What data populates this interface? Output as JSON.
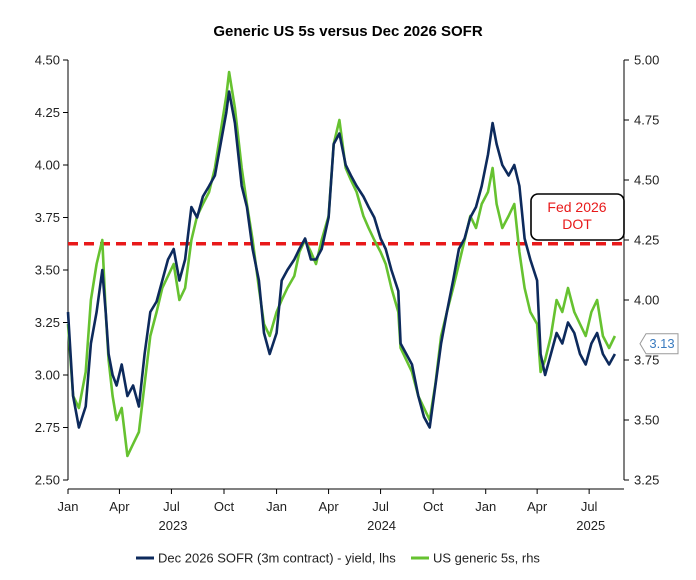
{
  "chart_data": {
    "type": "line",
    "title": "Generic US 5s versus Dec 2026 SOFR",
    "x_axis": {
      "range": [
        "2023-01-01",
        "2025-08-31"
      ],
      "ticks": [
        {
          "date": "2023-01-01",
          "label": "Jan",
          "year": "2023"
        },
        {
          "date": "2023-04-01",
          "label": "Apr"
        },
        {
          "date": "2023-07-01",
          "label": "Jul"
        },
        {
          "date": "2023-10-01",
          "label": "Oct"
        },
        {
          "date": "2024-01-01",
          "label": "Jan",
          "year": "2024"
        },
        {
          "date": "2024-04-01",
          "label": "Apr"
        },
        {
          "date": "2024-07-01",
          "label": "Jul"
        },
        {
          "date": "2024-10-01",
          "label": "Oct"
        },
        {
          "date": "2025-01-01",
          "label": "Jan",
          "year": "2025"
        },
        {
          "date": "2025-04-01",
          "label": "Apr"
        },
        {
          "date": "2025-07-01",
          "label": "Jul"
        }
      ]
    },
    "y_left": {
      "min": 2.5,
      "max": 4.5,
      "ticks": [
        "2.50",
        "2.75",
        "3.00",
        "3.25",
        "3.50",
        "3.75",
        "4.00",
        "4.25",
        "4.50"
      ]
    },
    "y_right": {
      "min": 3.25,
      "max": 5.0,
      "ticks": [
        "3.25",
        "3.50",
        "3.75",
        "4.00",
        "4.25",
        "4.50",
        "4.75",
        "5.00"
      ]
    },
    "series": [
      {
        "name": "Dec 2026 SOFR (3m contract) - yield, lhs",
        "axis": "left",
        "color": "#0d2a5c",
        "x": [
          "2023-01-01",
          "2023-01-10",
          "2023-01-20",
          "2023-02-01",
          "2023-02-10",
          "2023-02-20",
          "2023-03-02",
          "2023-03-08",
          "2023-03-13",
          "2023-03-20",
          "2023-03-27",
          "2023-04-05",
          "2023-04-15",
          "2023-04-25",
          "2023-05-05",
          "2023-05-15",
          "2023-05-25",
          "2023-06-05",
          "2023-06-15",
          "2023-06-25",
          "2023-07-05",
          "2023-07-15",
          "2023-07-25",
          "2023-08-05",
          "2023-08-15",
          "2023-08-25",
          "2023-09-05",
          "2023-09-15",
          "2023-09-25",
          "2023-10-05",
          "2023-10-10",
          "2023-10-20",
          "2023-11-01",
          "2023-11-10",
          "2023-11-20",
          "2023-12-01",
          "2023-12-10",
          "2023-12-20",
          "2024-01-01",
          "2024-01-10",
          "2024-01-20",
          "2024-02-01",
          "2024-02-10",
          "2024-02-20",
          "2024-03-01",
          "2024-03-10",
          "2024-03-20",
          "2024-04-01",
          "2024-04-10",
          "2024-04-20",
          "2024-05-01",
          "2024-05-10",
          "2024-05-20",
          "2024-06-01",
          "2024-06-10",
          "2024-06-20",
          "2024-07-01",
          "2024-07-10",
          "2024-07-20",
          "2024-08-01",
          "2024-08-05",
          "2024-08-15",
          "2024-08-25",
          "2024-09-05",
          "2024-09-15",
          "2024-09-25",
          "2024-10-05",
          "2024-10-15",
          "2024-10-25",
          "2024-11-05",
          "2024-11-15",
          "2024-11-25",
          "2024-12-05",
          "2024-12-15",
          "2024-12-25",
          "2025-01-05",
          "2025-01-13",
          "2025-01-20",
          "2025-01-30",
          "2025-02-10",
          "2025-02-20",
          "2025-03-01",
          "2025-03-10",
          "2025-03-20",
          "2025-04-01",
          "2025-04-07",
          "2025-04-15",
          "2025-04-25",
          "2025-05-05",
          "2025-05-15",
          "2025-05-25",
          "2025-06-05",
          "2025-06-15",
          "2025-06-25",
          "2025-07-05",
          "2025-07-15",
          "2025-07-25",
          "2025-08-05",
          "2025-08-15"
        ],
        "y": [
          3.3,
          2.9,
          2.75,
          2.85,
          3.15,
          3.3,
          3.5,
          3.3,
          3.1,
          3.0,
          2.95,
          3.05,
          2.9,
          2.95,
          2.85,
          3.1,
          3.3,
          3.35,
          3.45,
          3.55,
          3.6,
          3.45,
          3.55,
          3.8,
          3.75,
          3.85,
          3.9,
          3.95,
          4.1,
          4.25,
          4.35,
          4.2,
          3.9,
          3.8,
          3.6,
          3.45,
          3.2,
          3.1,
          3.2,
          3.45,
          3.5,
          3.55,
          3.6,
          3.65,
          3.55,
          3.55,
          3.6,
          3.75,
          4.1,
          4.15,
          4.0,
          3.95,
          3.9,
          3.85,
          3.8,
          3.75,
          3.65,
          3.6,
          3.5,
          3.4,
          3.15,
          3.1,
          3.05,
          2.9,
          2.8,
          2.75,
          2.95,
          3.15,
          3.3,
          3.45,
          3.6,
          3.65,
          3.75,
          3.8,
          3.9,
          4.05,
          4.2,
          4.1,
          4.0,
          3.95,
          4.0,
          3.9,
          3.65,
          3.55,
          3.45,
          3.1,
          3.0,
          3.1,
          3.2,
          3.15,
          3.25,
          3.2,
          3.1,
          3.05,
          3.15,
          3.2,
          3.1,
          3.05,
          3.1
        ]
      },
      {
        "name": "US generic 5s, rhs",
        "axis": "right",
        "color": "#66c230",
        "x": [
          "2023-01-01",
          "2023-01-10",
          "2023-01-20",
          "2023-02-01",
          "2023-02-10",
          "2023-02-20",
          "2023-03-02",
          "2023-03-08",
          "2023-03-13",
          "2023-03-20",
          "2023-03-27",
          "2023-04-05",
          "2023-04-15",
          "2023-04-25",
          "2023-05-05",
          "2023-05-15",
          "2023-05-25",
          "2023-06-05",
          "2023-06-15",
          "2023-06-25",
          "2023-07-05",
          "2023-07-15",
          "2023-07-25",
          "2023-08-05",
          "2023-08-15",
          "2023-08-25",
          "2023-09-05",
          "2023-09-15",
          "2023-09-25",
          "2023-10-05",
          "2023-10-10",
          "2023-10-20",
          "2023-11-01",
          "2023-11-10",
          "2023-11-20",
          "2023-12-01",
          "2023-12-10",
          "2023-12-20",
          "2024-01-01",
          "2024-01-10",
          "2024-01-20",
          "2024-02-01",
          "2024-02-10",
          "2024-02-20",
          "2024-03-01",
          "2024-03-10",
          "2024-03-20",
          "2024-04-01",
          "2024-04-10",
          "2024-04-20",
          "2024-05-01",
          "2024-05-10",
          "2024-05-20",
          "2024-06-01",
          "2024-06-10",
          "2024-06-20",
          "2024-07-01",
          "2024-07-10",
          "2024-07-20",
          "2024-08-01",
          "2024-08-05",
          "2024-08-15",
          "2024-08-25",
          "2024-09-05",
          "2024-09-15",
          "2024-09-25",
          "2024-10-05",
          "2024-10-15",
          "2024-10-25",
          "2024-11-05",
          "2024-11-15",
          "2024-11-25",
          "2024-12-05",
          "2024-12-15",
          "2024-12-25",
          "2025-01-05",
          "2025-01-13",
          "2025-01-20",
          "2025-01-30",
          "2025-02-10",
          "2025-02-20",
          "2025-03-01",
          "2025-03-10",
          "2025-03-20",
          "2025-04-01",
          "2025-04-07",
          "2025-04-15",
          "2025-04-25",
          "2025-05-05",
          "2025-05-15",
          "2025-05-25",
          "2025-06-05",
          "2025-06-15",
          "2025-06-25",
          "2025-07-05",
          "2025-07-15",
          "2025-07-25",
          "2025-08-05",
          "2025-08-15"
        ],
        "y": [
          3.9,
          3.6,
          3.55,
          3.7,
          4.0,
          4.15,
          4.25,
          3.95,
          3.75,
          3.6,
          3.5,
          3.55,
          3.35,
          3.4,
          3.45,
          3.65,
          3.85,
          3.95,
          4.05,
          4.1,
          4.15,
          4.0,
          4.05,
          4.25,
          4.35,
          4.4,
          4.45,
          4.55,
          4.7,
          4.85,
          4.95,
          4.8,
          4.55,
          4.4,
          4.25,
          4.05,
          3.9,
          3.85,
          3.95,
          4.0,
          4.05,
          4.1,
          4.2,
          4.25,
          4.2,
          4.15,
          4.25,
          4.35,
          4.65,
          4.75,
          4.55,
          4.5,
          4.45,
          4.35,
          4.3,
          4.25,
          4.2,
          4.15,
          4.05,
          3.95,
          3.8,
          3.75,
          3.7,
          3.6,
          3.55,
          3.5,
          3.65,
          3.85,
          3.95,
          4.05,
          4.15,
          4.25,
          4.35,
          4.3,
          4.4,
          4.45,
          4.55,
          4.4,
          4.3,
          4.35,
          4.4,
          4.2,
          4.05,
          3.95,
          3.9,
          3.7,
          3.75,
          3.85,
          4.0,
          3.95,
          4.05,
          3.95,
          3.9,
          3.85,
          3.95,
          4.0,
          3.85,
          3.8,
          3.85
        ]
      }
    ],
    "reference_line": {
      "axis": "left",
      "value": 3.625,
      "color": "#e8191a",
      "style": "dashed"
    },
    "annotation": {
      "lines": [
        "Fed 2026",
        "DOT"
      ],
      "color": "#e8191a"
    },
    "last_value_label": {
      "text": "3.13",
      "axis": "left",
      "value": 3.13,
      "color": "#3a7bbf"
    },
    "legend": {
      "placement": "bottom-center"
    },
    "grid": false
  }
}
